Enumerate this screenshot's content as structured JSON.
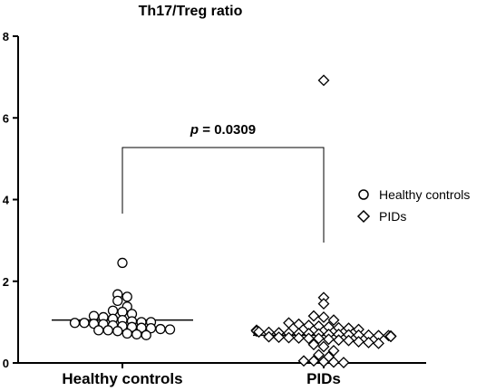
{
  "chart_data": {
    "type": "scatter",
    "title": "Th17/Treg ratio",
    "xlabel": "",
    "ylabel": "",
    "ylim": [
      0,
      8
    ],
    "yticks": [
      "0",
      "2",
      "4",
      "6",
      "8"
    ],
    "categories": [
      "Healthy controls",
      "PIDs"
    ],
    "grid": false,
    "legend_position": "right",
    "annotation": {
      "p_symbol": "p",
      "p_rest": " = 0.0309"
    },
    "series": [
      {
        "name": "Healthy controls",
        "marker": "circle",
        "mean": 1.05,
        "values": [
          2.45,
          1.68,
          1.62,
          1.52,
          1.38,
          1.28,
          1.25,
          1.2,
          1.15,
          1.12,
          1.08,
          1.05,
          1.02,
          1.0,
          1.0,
          0.98,
          0.98,
          0.96,
          0.95,
          0.92,
          0.9,
          0.88,
          0.86,
          0.85,
          0.83,
          0.82,
          0.8,
          0.8,
          0.78,
          0.72,
          0.7,
          0.68
        ]
      },
      {
        "name": "PIDs",
        "marker": "diamond",
        "mean": 0.68,
        "values": [
          6.92,
          1.6,
          1.45,
          1.15,
          1.12,
          1.05,
          0.98,
          0.95,
          0.92,
          0.9,
          0.88,
          0.86,
          0.85,
          0.82,
          0.8,
          0.8,
          0.78,
          0.76,
          0.75,
          0.74,
          0.73,
          0.72,
          0.72,
          0.71,
          0.7,
          0.7,
          0.69,
          0.68,
          0.68,
          0.67,
          0.67,
          0.66,
          0.65,
          0.65,
          0.64,
          0.63,
          0.62,
          0.61,
          0.6,
          0.6,
          0.58,
          0.56,
          0.55,
          0.52,
          0.5,
          0.48,
          0.45,
          0.4,
          0.3,
          0.2,
          0.15,
          0.05,
          0.05,
          0.03,
          0.02,
          0.01
        ]
      }
    ]
  }
}
